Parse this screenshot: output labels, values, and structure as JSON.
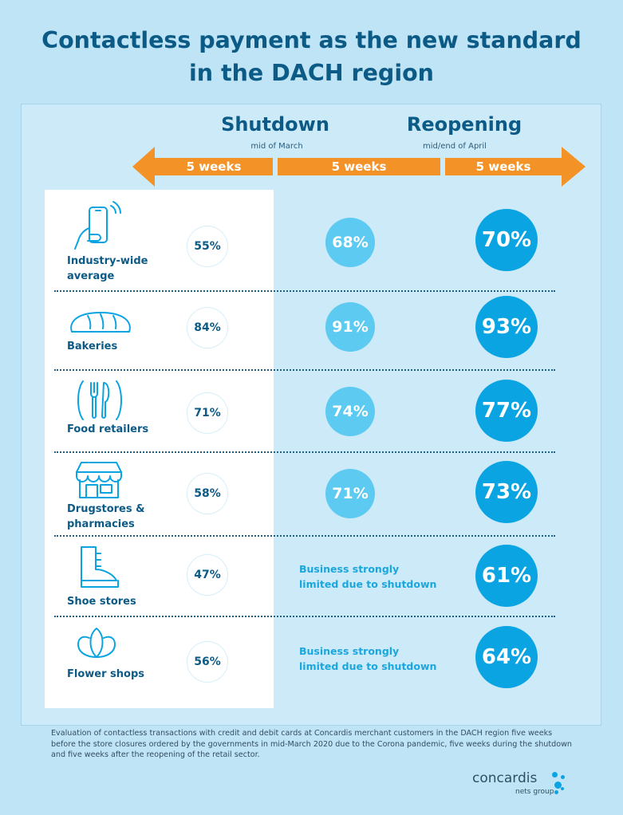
{
  "title": {
    "line1": "Contactless payment as the new standard",
    "line2": "in the DACH region"
  },
  "phases": {
    "shutdown": {
      "label": "Shutdown",
      "sub": "mid of March"
    },
    "reopening": {
      "label": "Reopening",
      "sub": "mid/end of April"
    }
  },
  "timeline": {
    "segments": [
      "5 weeks",
      "5 weeks",
      "5 weeks"
    ],
    "color": "#f39226"
  },
  "rows": [
    {
      "label": "Industry-wide average",
      "icon": "phone-payment-icon",
      "before": "55%",
      "during": "68%",
      "after": "70%"
    },
    {
      "label": "Bakeries",
      "icon": "bread-icon",
      "before": "84%",
      "during": "91%",
      "after": "93%"
    },
    {
      "label": "Food retailers",
      "icon": "cutlery-icon",
      "before": "71%",
      "during": "74%",
      "after": "77%"
    },
    {
      "label": "Drugstores & pharmacies",
      "icon": "store-icon",
      "before": "58%",
      "during": "71%",
      "after": "73%"
    },
    {
      "label": "Shoe stores",
      "icon": "boot-icon",
      "before": "47%",
      "during": "Business strongly limited due to shutdown",
      "after": "61%"
    },
    {
      "label": "Flower shops",
      "icon": "flower-icon",
      "before": "56%",
      "during": "Business strongly limited due to shutdown",
      "after": "64%"
    }
  ],
  "labels_split": {
    "row0": [
      "Industry-wide",
      "average"
    ],
    "row3": [
      "Drugstores &",
      "pharmacies"
    ],
    "note": [
      "Business strongly",
      "limited due to shutdown"
    ]
  },
  "footnote": "Evaluation of contactless transactions with credit and debit cards at Concardis merchant customers in the DACH region five weeks before the store closures ordered by the governments in mid-March 2020 due to the Corona pandemic, five weeks during the shutdown and five weeks after the reopening of the retail sector.",
  "logo": {
    "name": "concardis",
    "sub": "nets group"
  },
  "colors": {
    "background": "#bfe4f6",
    "title": "#0c5a86",
    "circle_mid": "#5ccaf1",
    "circle_big": "#0ba4e3",
    "note": "#1aa6de"
  }
}
